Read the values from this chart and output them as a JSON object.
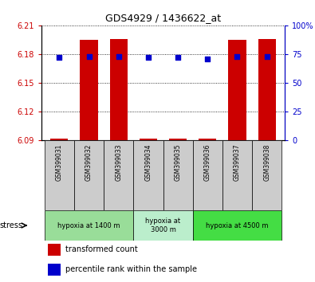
{
  "title": "GDS4929 / 1436622_at",
  "samples": [
    "GSM399031",
    "GSM399032",
    "GSM399033",
    "GSM399034",
    "GSM399035",
    "GSM399036",
    "GSM399037",
    "GSM399038"
  ],
  "bar_values": [
    6.092,
    6.195,
    6.196,
    6.092,
    6.092,
    6.092,
    6.195,
    6.196
  ],
  "bar_base": 6.09,
  "percentile_values": [
    72,
    73,
    73,
    72,
    72,
    71,
    73,
    73
  ],
  "ylim_left": [
    6.09,
    6.21
  ],
  "ylim_right": [
    0,
    100
  ],
  "yticks_left": [
    6.09,
    6.12,
    6.15,
    6.18,
    6.21
  ],
  "yticks_right": [
    0,
    25,
    50,
    75,
    100
  ],
  "bar_color": "#cc0000",
  "dot_color": "#0000cc",
  "bar_width": 0.6,
  "groups": [
    {
      "label": "hypoxia at 1400 m",
      "start": 0,
      "end": 3,
      "color": "#99dd99"
    },
    {
      "label": "hypoxia at\n3000 m",
      "start": 3,
      "end": 5,
      "color": "#bbeecc"
    },
    {
      "label": "hypoxia at 4500 m",
      "start": 5,
      "end": 8,
      "color": "#44dd44"
    }
  ],
  "stress_label": "stress",
  "legend_items": [
    {
      "color": "#cc0000",
      "label": "transformed count"
    },
    {
      "color": "#0000cc",
      "label": "percentile rank within the sample"
    }
  ],
  "left_tick_color": "#cc0000",
  "right_tick_color": "#0000cc",
  "grid_color": "#000000",
  "bg_xlabel": "#cccccc"
}
